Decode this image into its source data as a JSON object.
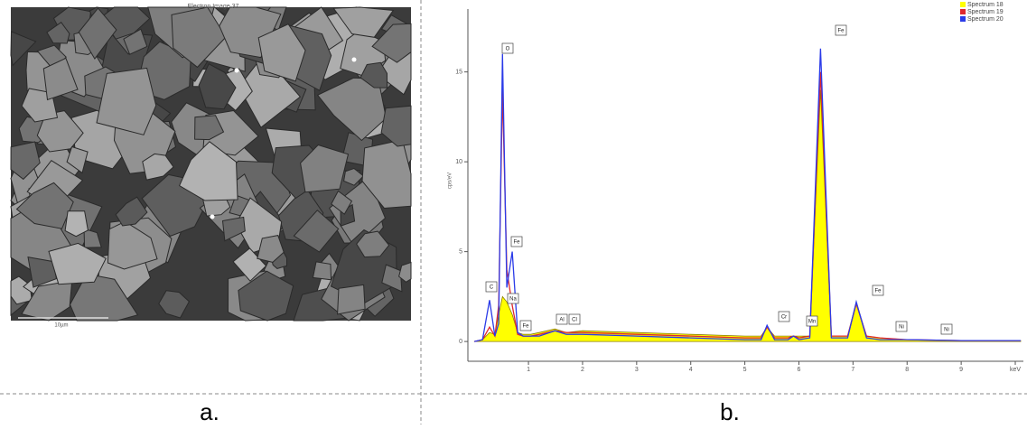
{
  "panels": {
    "a": {
      "label": "a.",
      "image_title": "Electron Image 37",
      "scale_bar": "10µm"
    },
    "b": {
      "label": "b."
    }
  },
  "chart_data": {
    "type": "spectrum",
    "y_label": "cps/eV",
    "x": [
      0,
      0.15,
      0.28,
      0.38,
      0.45,
      0.52,
      0.6,
      0.7,
      0.8,
      0.9,
      1.04,
      1.2,
      1.49,
      1.7,
      2.0,
      3,
      4,
      5,
      5.3,
      5.41,
      5.55,
      5.8,
      5.9,
      6.0,
      6.2,
      6.4,
      6.6,
      6.9,
      7.06,
      7.25,
      7.5,
      8,
      9,
      10.1
    ],
    "series": [
      {
        "name": "Spectrum 18",
        "color": "#ffff00",
        "filled": true,
        "values": [
          0,
          0.1,
          0.5,
          0.4,
          1.5,
          2.5,
          2.2,
          1.5,
          0.5,
          0.4,
          0.4,
          0.5,
          0.7,
          0.5,
          0.6,
          0.5,
          0.4,
          0.3,
          0.3,
          0.8,
          0.3,
          0.3,
          0.3,
          0.3,
          0.3,
          14,
          0.3,
          0.3,
          2.2,
          0.3,
          0.2,
          0.1,
          0.05,
          0.05
        ]
      },
      {
        "name": "Spectrum 19",
        "color": "#e0282d",
        "filled": false,
        "values": [
          0,
          0.1,
          0.8,
          0.3,
          2,
          14,
          4,
          2,
          0.4,
          0.3,
          0.3,
          0.4,
          0.6,
          0.5,
          0.5,
          0.4,
          0.3,
          0.2,
          0.2,
          0.8,
          0.2,
          0.2,
          0.3,
          0.2,
          0.3,
          15,
          0.3,
          0.3,
          2.1,
          0.3,
          0.2,
          0.1,
          0.05,
          0.05
        ]
      },
      {
        "name": "Spectrum 20",
        "color": "#2b3be8",
        "filled": false,
        "values": [
          0,
          0.1,
          2.3,
          0.3,
          1,
          16,
          3,
          5,
          0.5,
          0.3,
          0.3,
          0.3,
          0.6,
          0.4,
          0.4,
          0.3,
          0.2,
          0.1,
          0.1,
          0.9,
          0.1,
          0.1,
          0.3,
          0.1,
          0.2,
          16.3,
          0.2,
          0.2,
          2.2,
          0.2,
          0.1,
          0.1,
          0.05,
          0.05
        ]
      }
    ],
    "xlim": [
      -0.12,
      10.15
    ],
    "ylim": [
      -1.1,
      18.5
    ],
    "xticks": [
      1,
      2,
      3,
      4,
      5,
      6,
      7,
      8,
      9,
      {
        "value": 10,
        "label": "keV"
      }
    ],
    "yticks": [
      0,
      5,
      10,
      15
    ],
    "legend": "upper-right",
    "annotations": [
      "C",
      "O",
      "Fe",
      "Na",
      "Fe",
      "Al",
      "Cl",
      "Cr",
      "Mn",
      "Fe",
      "Fe",
      "Ni",
      "Ni"
    ]
  }
}
